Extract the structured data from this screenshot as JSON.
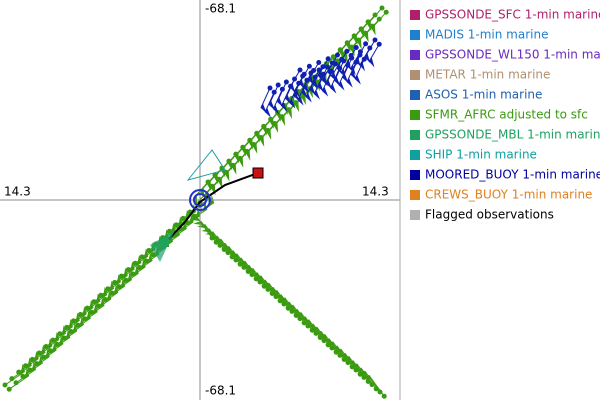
{
  "plot": {
    "labels": {
      "top": "-68.1",
      "left": "14.3",
      "right": "14.3",
      "bottom": "-68.1"
    }
  },
  "legend": [
    {
      "label": "GPSSONDE_SFC 1-min marine",
      "color": "#b0206a"
    },
    {
      "label": "MADIS 1-min marine",
      "color": "#2080d0"
    },
    {
      "label": "GPSSONDE_WL150 1-min marine",
      "color": "#6a2ac0"
    },
    {
      "label": "METAR 1-min marine",
      "color": "#b09070"
    },
    {
      "label": "ASOS 1-min marine",
      "color": "#2060b0"
    },
    {
      "label": "SFMR_AFRC adjusted to sfc",
      "color": "#3a9a10"
    },
    {
      "label": "GPSSONDE_MBL 1-min marine",
      "color": "#20a060"
    },
    {
      "label": "SHIP 1-min marine",
      "color": "#10a0a0"
    },
    {
      "label": "MOORED_BUOY 1-min marine",
      "color": "#0000a0"
    },
    {
      "label": "CREWS_BUOY 1-min marine",
      "color": "#e08020"
    },
    {
      "label": "Flagged observations",
      "color": "#b0b0b0",
      "text_color": "#000000"
    }
  ]
}
